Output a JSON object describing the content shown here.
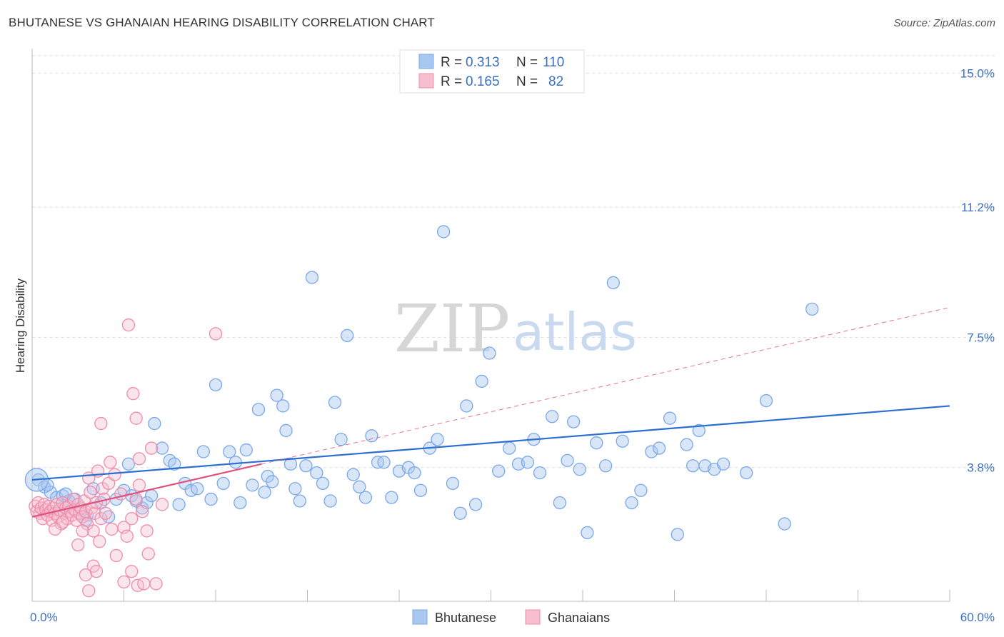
{
  "title": "BHUTANESE VS GHANAIAN HEARING DISABILITY CORRELATION CHART",
  "source": "Source: ZipAtlas.com",
  "watermark": {
    "zip": "ZIP",
    "atlas": "atlas"
  },
  "colors": {
    "blue": "#7aa8e8",
    "blue_fill": "#a9c8f0",
    "blue_line": "#2a6fd1",
    "pink": "#f08cab",
    "pink_fill": "#f6bfd0",
    "pink_line": "#e0507d",
    "grid": "#dddddd",
    "tick_text": "#3a6fc4"
  },
  "legend": {
    "rows": [
      {
        "series": "Bhutanese",
        "r_label": "R =",
        "r_value": "0.313",
        "n_label": "N =",
        "n_value": "110"
      },
      {
        "series": "Ghanaians",
        "r_label": "R =",
        "r_value": "0.165",
        "n_label": "N =",
        "n_value": "82"
      }
    ]
  },
  "chart_data": {
    "type": "scatter",
    "title": "BHUTANESE VS GHANAIAN HEARING DISABILITY CORRELATION CHART",
    "xlabel": "",
    "ylabel": "Hearing Disability",
    "xlim": [
      0,
      60
    ],
    "ylim": [
      0,
      15.5
    ],
    "y_ticks": [
      3.8,
      7.5,
      11.2,
      15.0
    ],
    "y_tick_labels": [
      "3.8%",
      "7.5%",
      "11.2%",
      "15.0%"
    ],
    "x_tick_labels": [
      "0.0%",
      "60.0%"
    ],
    "grid": true,
    "legend_position": "top-center",
    "series": [
      {
        "name": "Bhutanese",
        "trend": {
          "x": [
            0,
            60
          ],
          "y": [
            3.45,
            5.55
          ]
        },
        "points": [
          [
            0.4,
            3.45
          ],
          [
            0.8,
            3.25
          ],
          [
            1.2,
            3.1
          ],
          [
            1.6,
            2.95
          ],
          [
            2.0,
            3.0
          ],
          [
            2.4,
            2.85
          ],
          [
            2.8,
            2.9
          ],
          [
            3.2,
            2.6
          ],
          [
            3.6,
            2.45
          ],
          [
            4.0,
            3.2
          ],
          [
            4.5,
            2.8
          ],
          [
            5.0,
            2.4
          ],
          [
            5.5,
            2.9
          ],
          [
            6.0,
            3.15
          ],
          [
            6.3,
            3.9
          ],
          [
            6.5,
            3.0
          ],
          [
            6.8,
            2.85
          ],
          [
            7.2,
            2.65
          ],
          [
            7.5,
            2.8
          ],
          [
            7.8,
            3.0
          ],
          [
            8.0,
            5.05
          ],
          [
            8.5,
            4.35
          ],
          [
            9.0,
            4.0
          ],
          [
            9.3,
            3.9
          ],
          [
            9.6,
            2.75
          ],
          [
            10.0,
            3.35
          ],
          [
            10.4,
            3.15
          ],
          [
            10.8,
            3.2
          ],
          [
            11.2,
            4.25
          ],
          [
            11.7,
            2.9
          ],
          [
            12.0,
            6.15
          ],
          [
            12.5,
            3.35
          ],
          [
            12.9,
            4.25
          ],
          [
            13.3,
            3.95
          ],
          [
            13.6,
            2.8
          ],
          [
            14.0,
            4.3
          ],
          [
            14.4,
            3.3
          ],
          [
            14.8,
            5.45
          ],
          [
            15.2,
            3.1
          ],
          [
            15.4,
            3.55
          ],
          [
            15.7,
            3.4
          ],
          [
            16.0,
            5.85
          ],
          [
            16.4,
            5.55
          ],
          [
            16.6,
            4.85
          ],
          [
            16.9,
            3.9
          ],
          [
            17.2,
            3.2
          ],
          [
            17.5,
            2.85
          ],
          [
            17.9,
            3.85
          ],
          [
            18.3,
            9.2
          ],
          [
            18.6,
            3.65
          ],
          [
            19.0,
            3.35
          ],
          [
            19.5,
            2.85
          ],
          [
            19.8,
            5.65
          ],
          [
            20.2,
            4.6
          ],
          [
            20.6,
            7.55
          ],
          [
            21.0,
            3.6
          ],
          [
            21.4,
            3.25
          ],
          [
            21.8,
            2.95
          ],
          [
            22.2,
            4.7
          ],
          [
            22.6,
            3.95
          ],
          [
            23.0,
            3.95
          ],
          [
            23.5,
            2.95
          ],
          [
            24.0,
            3.7
          ],
          [
            24.6,
            3.8
          ],
          [
            25.0,
            3.65
          ],
          [
            25.4,
            3.15
          ],
          [
            26.0,
            4.35
          ],
          [
            26.5,
            4.6
          ],
          [
            26.9,
            10.5
          ],
          [
            27.5,
            3.35
          ],
          [
            28.0,
            2.5
          ],
          [
            28.4,
            5.55
          ],
          [
            29.0,
            2.75
          ],
          [
            29.4,
            6.25
          ],
          [
            29.9,
            7.05
          ],
          [
            30.5,
            3.7
          ],
          [
            31.2,
            4.35
          ],
          [
            31.8,
            3.9
          ],
          [
            32.4,
            3.95
          ],
          [
            32.8,
            4.6
          ],
          [
            33.2,
            3.65
          ],
          [
            34.0,
            5.25
          ],
          [
            34.5,
            2.8
          ],
          [
            35.0,
            4.0
          ],
          [
            35.4,
            5.1
          ],
          [
            35.8,
            3.75
          ],
          [
            36.3,
            1.95
          ],
          [
            36.9,
            4.5
          ],
          [
            37.5,
            3.85
          ],
          [
            38.0,
            9.05
          ],
          [
            38.6,
            4.55
          ],
          [
            39.2,
            2.8
          ],
          [
            39.8,
            3.15
          ],
          [
            40.5,
            4.25
          ],
          [
            41.0,
            4.35
          ],
          [
            41.7,
            5.2
          ],
          [
            42.2,
            1.9
          ],
          [
            42.8,
            4.45
          ],
          [
            43.2,
            3.85
          ],
          [
            43.6,
            4.85
          ],
          [
            44.0,
            3.85
          ],
          [
            44.6,
            3.75
          ],
          [
            45.2,
            3.9
          ],
          [
            46.7,
            3.65
          ],
          [
            48.0,
            5.7
          ],
          [
            49.2,
            2.2
          ],
          [
            51.0,
            8.3
          ],
          [
            3.5,
            2.3
          ],
          [
            2.2,
            3.05
          ],
          [
            1.0,
            3.3
          ]
        ]
      },
      {
        "name": "Ghanaians",
        "trend": {
          "x": [
            0,
            15
          ],
          "y": [
            2.4,
            3.9
          ]
        },
        "trend_dashed": {
          "x": [
            15,
            60
          ],
          "y": [
            3.9,
            8.35
          ]
        },
        "points": [
          [
            0.2,
            2.7
          ],
          [
            0.3,
            2.55
          ],
          [
            0.4,
            2.8
          ],
          [
            0.5,
            2.5
          ],
          [
            0.6,
            2.65
          ],
          [
            0.7,
            2.35
          ],
          [
            0.8,
            2.75
          ],
          [
            0.9,
            2.6
          ],
          [
            1.0,
            2.45
          ],
          [
            1.1,
            2.7
          ],
          [
            1.2,
            2.55
          ],
          [
            1.3,
            2.3
          ],
          [
            1.4,
            2.65
          ],
          [
            1.5,
            2.5
          ],
          [
            1.6,
            2.75
          ],
          [
            1.7,
            2.4
          ],
          [
            1.8,
            2.6
          ],
          [
            1.9,
            2.2
          ],
          [
            2.0,
            2.8
          ],
          [
            2.1,
            2.5
          ],
          [
            2.2,
            2.65
          ],
          [
            2.3,
            2.35
          ],
          [
            2.4,
            2.7
          ],
          [
            2.5,
            2.55
          ],
          [
            2.6,
            2.45
          ],
          [
            2.7,
            2.9
          ],
          [
            2.8,
            2.6
          ],
          [
            2.9,
            2.3
          ],
          [
            3.0,
            2.75
          ],
          [
            3.1,
            2.5
          ],
          [
            3.2,
            2.65
          ],
          [
            3.3,
            2.4
          ],
          [
            3.4,
            2.85
          ],
          [
            3.5,
            2.55
          ],
          [
            3.6,
            2.2
          ],
          [
            3.7,
            3.5
          ],
          [
            3.8,
            3.1
          ],
          [
            3.9,
            2.65
          ],
          [
            4.0,
            2.0
          ],
          [
            4.1,
            2.5
          ],
          [
            4.2,
            2.8
          ],
          [
            4.3,
            3.7
          ],
          [
            4.4,
            1.7
          ],
          [
            4.5,
            2.35
          ],
          [
            4.6,
            3.2
          ],
          [
            4.7,
            2.9
          ],
          [
            4.8,
            2.5
          ],
          [
            5.0,
            3.35
          ],
          [
            5.2,
            2.05
          ],
          [
            5.4,
            3.6
          ],
          [
            5.5,
            1.3
          ],
          [
            5.8,
            3.05
          ],
          [
            6.0,
            2.1
          ],
          [
            6.2,
            1.85
          ],
          [
            6.5,
            2.35
          ],
          [
            6.8,
            2.9
          ],
          [
            7.0,
            3.3
          ],
          [
            7.2,
            2.55
          ],
          [
            7.5,
            2.0
          ],
          [
            7.8,
            4.35
          ],
          [
            4.5,
            5.05
          ],
          [
            5.1,
            3.95
          ],
          [
            6.3,
            7.85
          ],
          [
            6.6,
            5.9
          ],
          [
            6.8,
            5.2
          ],
          [
            7.0,
            4.05
          ],
          [
            12.0,
            7.6
          ],
          [
            3.0,
            1.6
          ],
          [
            3.5,
            0.75
          ],
          [
            3.7,
            0.3
          ],
          [
            4.0,
            1.0
          ],
          [
            4.2,
            0.85
          ],
          [
            6.0,
            0.55
          ],
          [
            6.5,
            0.85
          ],
          [
            6.9,
            0.45
          ],
          [
            7.3,
            0.5
          ],
          [
            7.6,
            1.35
          ],
          [
            8.1,
            0.5
          ],
          [
            8.5,
            2.75
          ],
          [
            3.3,
            2.0
          ],
          [
            2.0,
            2.25
          ],
          [
            1.5,
            2.05
          ]
        ]
      }
    ]
  },
  "bottom_legend": [
    {
      "label": "Bhutanese"
    },
    {
      "label": "Ghanaians"
    }
  ]
}
